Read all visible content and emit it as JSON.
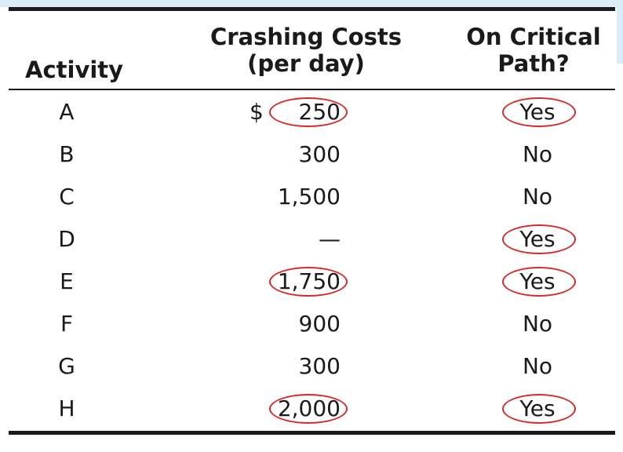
{
  "table": {
    "headers": {
      "activity": "Activity",
      "crashing_line1": "Crashing Costs",
      "crashing_line2": "(per day)",
      "critical_line1": "On Critical",
      "critical_line2": "Path?"
    },
    "rows": [
      {
        "activity": "A",
        "currency": "$",
        "cost": "250",
        "critical": "Yes",
        "cost_circled": true,
        "critical_circled": true
      },
      {
        "activity": "B",
        "currency": "",
        "cost": "300",
        "critical": "No",
        "cost_circled": false,
        "critical_circled": false
      },
      {
        "activity": "C",
        "currency": "",
        "cost": "1,500",
        "critical": "No",
        "cost_circled": false,
        "critical_circled": false
      },
      {
        "activity": "D",
        "currency": "",
        "cost": "—",
        "critical": "Yes",
        "cost_circled": false,
        "critical_circled": true
      },
      {
        "activity": "E",
        "currency": "",
        "cost": "1,750",
        "critical": "Yes",
        "cost_circled": true,
        "critical_circled": true
      },
      {
        "activity": "F",
        "currency": "",
        "cost": "900",
        "critical": "No",
        "cost_circled": false,
        "critical_circled": false
      },
      {
        "activity": "G",
        "currency": "",
        "cost": "300",
        "critical": "No",
        "cost_circled": false,
        "critical_circled": false
      },
      {
        "activity": "H",
        "currency": "",
        "cost": "2,000",
        "critical": "Yes",
        "cost_circled": true,
        "critical_circled": true
      }
    ]
  },
  "colors": {
    "annotation_circle": "#d42a2a",
    "rule": "#1a1a1a",
    "top_band": "#d9ecf7"
  }
}
